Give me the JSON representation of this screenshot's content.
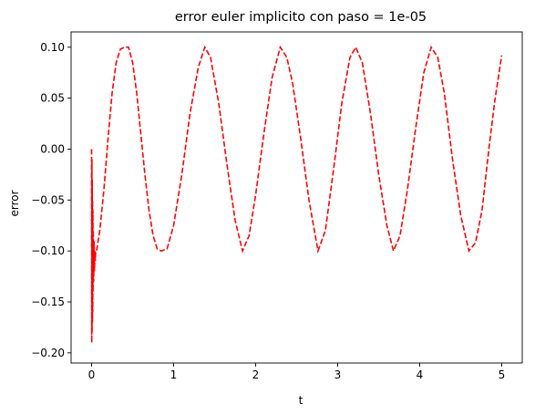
{
  "chart_data": {
    "type": "line",
    "title": "error euler implicito con paso = 1e-05",
    "xlabel": "t",
    "ylabel": "error",
    "xlim": [
      -0.25,
      5.25
    ],
    "ylim": [
      -0.21,
      0.115
    ],
    "xticks": [
      0,
      1,
      2,
      3,
      4,
      5
    ],
    "xtick_labels": [
      "0",
      "1",
      "2",
      "3",
      "4",
      "5"
    ],
    "yticks": [
      -0.2,
      -0.15,
      -0.1,
      -0.05,
      0.0,
      0.05,
      0.1
    ],
    "ytick_labels": [
      "−0.20",
      "−0.15",
      "−0.10",
      "−0.05",
      "0.00",
      "0.05",
      "0.10"
    ],
    "grid": false,
    "series": [
      {
        "color": "#ff0000",
        "linestyle": "dashed",
        "x": [
          0.0,
          0.002,
          0.004,
          0.006,
          0.008,
          0.01,
          0.012,
          0.014,
          0.016,
          0.018,
          0.02,
          0.025,
          0.03,
          0.035,
          0.04,
          0.045,
          0.05,
          0.06,
          0.07,
          0.08,
          0.1,
          0.15,
          0.2,
          0.25,
          0.3,
          0.35,
          0.4,
          0.45,
          0.5,
          0.55,
          0.6,
          0.65,
          0.7,
          0.75,
          0.8,
          0.85,
          0.92,
          1.0,
          1.1,
          1.2,
          1.3,
          1.38,
          1.45,
          1.55,
          1.65,
          1.75,
          1.84,
          1.92,
          2.0,
          2.1,
          2.2,
          2.3,
          2.38,
          2.45,
          2.55,
          2.65,
          2.76,
          2.85,
          2.95,
          3.05,
          3.15,
          3.22,
          3.3,
          3.4,
          3.5,
          3.6,
          3.68,
          3.76,
          3.85,
          3.95,
          4.05,
          4.14,
          4.22,
          4.3,
          4.4,
          4.5,
          4.6,
          4.68,
          4.76,
          4.85,
          4.92,
          5.0
        ],
        "y": [
          0.0,
          -0.19,
          -0.01,
          -0.18,
          -0.03,
          -0.17,
          -0.05,
          -0.16,
          -0.06,
          -0.14,
          -0.08,
          -0.13,
          -0.09,
          -0.12,
          -0.1,
          -0.11,
          -0.1,
          -0.1,
          -0.095,
          -0.09,
          -0.08,
          -0.04,
          0.01,
          0.055,
          0.085,
          0.098,
          0.1,
          0.1,
          0.085,
          0.055,
          0.015,
          -0.025,
          -0.06,
          -0.085,
          -0.098,
          -0.1,
          -0.098,
          -0.075,
          -0.025,
          0.035,
          0.08,
          0.1,
          0.09,
          0.045,
          -0.015,
          -0.07,
          -0.1,
          -0.085,
          -0.045,
          0.015,
          0.07,
          0.1,
          0.09,
          0.065,
          0.01,
          -0.05,
          -0.1,
          -0.08,
          -0.02,
          0.045,
          0.09,
          0.1,
          0.085,
          0.035,
          -0.025,
          -0.075,
          -0.1,
          -0.085,
          -0.04,
          0.02,
          0.075,
          0.1,
          0.09,
          0.055,
          -0.01,
          -0.065,
          -0.1,
          -0.092,
          -0.06,
          0.005,
          0.05,
          0.092
        ]
      }
    ]
  }
}
